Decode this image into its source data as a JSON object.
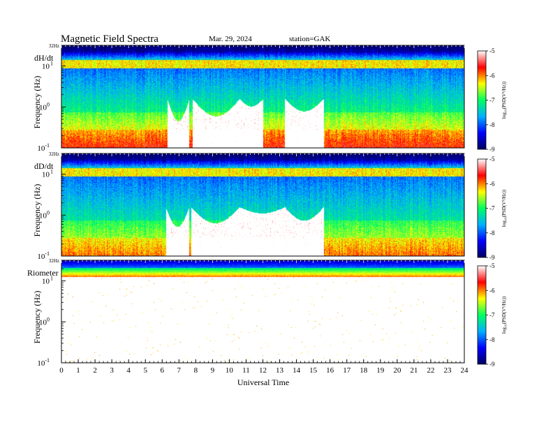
{
  "header": {
    "title": "Magnetic  Field  Spectra",
    "date": "Mar. 29, 2024",
    "station": "station=GAK"
  },
  "chart_data": {
    "type": "heatmap",
    "xlabel": "Universal Time",
    "x_ticks": [
      "0",
      "1",
      "2",
      "3",
      "4",
      "5",
      "6",
      "7",
      "8",
      "9",
      "10",
      "11",
      "12",
      "13",
      "14",
      "15",
      "16",
      "17",
      "18",
      "19",
      "20",
      "21",
      "22",
      "23",
      "24"
    ],
    "xlim": [
      0,
      24
    ],
    "y_scale": "log",
    "ylim": [
      0.1,
      32
    ],
    "colorbar": {
      "label": "log₁₀(PSD(V²/Hz))",
      "ticks": [
        "-5",
        "-6",
        "-7",
        "-8",
        "-9"
      ],
      "range": [
        -9,
        -5
      ],
      "colors": [
        "#000060",
        "#0000ff",
        "#00b0ff",
        "#00ff60",
        "#ffff00",
        "#ff0000",
        "#ffffff"
      ]
    },
    "panels": [
      {
        "channel": "dH/dt",
        "ylabel": "Frequency  (Hz)",
        "y_tick_top": "32Hz",
        "y_ticks": [
          {
            "base": "10",
            "exp": "1"
          },
          {
            "base": "10",
            "exp": "0"
          },
          {
            "base": "10",
            "exp": "-1"
          }
        ],
        "low_band_level": -6.8,
        "quiet_intervals": [
          [
            6.3,
            7.6,
            1.8
          ],
          [
            7.8,
            10.6,
            1.4
          ],
          [
            10.6,
            12.0,
            0.6
          ],
          [
            13.3,
            15.6,
            1.0
          ]
        ]
      },
      {
        "channel": "dD/dt",
        "ylabel": "Frequency  (Hz)",
        "y_tick_top": "32Hz",
        "y_ticks": [
          {
            "base": "10",
            "exp": "1"
          },
          {
            "base": "10",
            "exp": "0"
          },
          {
            "base": "10",
            "exp": "-1"
          }
        ],
        "low_band_level": -7.0,
        "quiet_intervals": [
          [
            6.2,
            7.6,
            1.6
          ],
          [
            7.7,
            10.6,
            1.3
          ],
          [
            10.6,
            13.3,
            0.5
          ],
          [
            13.3,
            15.6,
            1.1
          ]
        ]
      },
      {
        "channel": "Riometer",
        "ylabel": "Frequency  (Hz)",
        "y_tick_top": "32Hz",
        "y_ticks": [
          {
            "base": "10",
            "exp": "1"
          },
          {
            "base": "10",
            "exp": "0"
          },
          {
            "base": "10",
            "exp": "-1"
          }
        ],
        "low_band_level": -4.0,
        "quiet_intervals": []
      }
    ]
  }
}
